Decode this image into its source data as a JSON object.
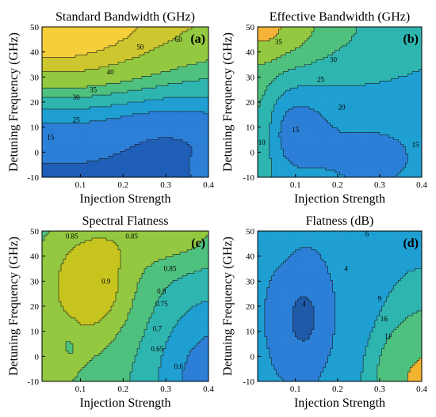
{
  "chart_data": [
    {
      "type": "heatmap",
      "subtype": "filled-contour",
      "panel": "(a)",
      "title": "Standard Bandwidth (GHz)",
      "xlabel": "Injection Strength",
      "ylabel": "Detuning Frequency (GHz)",
      "xlim": [
        0.01,
        0.4
      ],
      "ylim": [
        -10,
        50
      ],
      "xticks": [
        "0.1",
        "0.2",
        "0.3",
        "0.4"
      ],
      "yticks": [
        "-10",
        "0",
        "10",
        "20",
        "30",
        "40",
        "50"
      ],
      "contour_labels": [
        "60",
        "50",
        "40",
        "35",
        "30",
        "25",
        "15"
      ],
      "levels": [
        15,
        25,
        30,
        35,
        40,
        50,
        60
      ],
      "colors": [
        "#1f5fb8",
        "#2c7fd6",
        "#1f9fd2",
        "#2fb5b0",
        "#4fc17e",
        "#93c840",
        "#cdc62e",
        "#f5cf3a"
      ]
    },
    {
      "type": "heatmap",
      "subtype": "filled-contour",
      "panel": "(b)",
      "title": "Effective Bandwidth (GHz)",
      "xlabel": "Injection Strength",
      "ylabel": "",
      "xlim": [
        0.01,
        0.4
      ],
      "ylim": [
        -10,
        50
      ],
      "xticks": [
        "0.1",
        "0.2",
        "0.3",
        "0.4"
      ],
      "yticks": [
        "-10",
        "0",
        "10",
        "20",
        "30",
        "40",
        "50"
      ],
      "contour_labels": [
        "35",
        "30",
        "25",
        "20",
        "15",
        "15",
        "10"
      ],
      "levels": [
        10,
        15,
        20,
        25,
        30,
        35
      ],
      "colors": [
        "#1f5fb8",
        "#2c7fd6",
        "#1f9fd2",
        "#2fb5b0",
        "#4fc17e",
        "#93c840",
        "#f5b33a"
      ]
    },
    {
      "type": "heatmap",
      "subtype": "filled-contour",
      "panel": "(c)",
      "title": "Spectral Flatness",
      "xlabel": "Injection Strength",
      "ylabel": "Detuning Frequency (GHz)",
      "xlim": [
        0.01,
        0.4
      ],
      "ylim": [
        -10,
        50
      ],
      "xticks": [
        "0.1",
        "0.2",
        "0.3",
        "0.4"
      ],
      "yticks": [
        "-10",
        "0",
        "10",
        "20",
        "30",
        "40",
        "50"
      ],
      "contour_labels": [
        "0.85",
        "0.85",
        "0.9",
        "0.85",
        "0.8",
        "0.75",
        "0.7",
        "0.65",
        "0.6"
      ],
      "levels": [
        0.6,
        0.65,
        0.7,
        0.75,
        0.8,
        0.85,
        0.9
      ],
      "colors": [
        "#1f5fb8",
        "#2c7fd6",
        "#1f9fd2",
        "#2fb5b0",
        "#4fc17e",
        "#93c840",
        "#c8c41f",
        "#f3c13a"
      ]
    },
    {
      "type": "heatmap",
      "subtype": "filled-contour",
      "panel": "(d)",
      "title": "Flatness (dB)",
      "xlabel": "Injection Strength",
      "ylabel": "",
      "xlim": [
        0.01,
        0.4
      ],
      "ylim": [
        -10,
        50
      ],
      "xticks": [
        "0.1",
        "0.2",
        "0.3",
        "0.4"
      ],
      "yticks": [
        "-10",
        "0",
        "10",
        "20",
        "30",
        "40",
        "50"
      ],
      "contour_labels": [
        "6",
        "4",
        "9",
        "16",
        "11",
        "4"
      ],
      "levels": [
        4,
        6,
        9,
        11,
        16
      ],
      "colors": [
        "#1f5aa8",
        "#2c7fd6",
        "#1f9fd2",
        "#2fb5b0",
        "#4fc17e",
        "#f3b32e"
      ]
    }
  ]
}
